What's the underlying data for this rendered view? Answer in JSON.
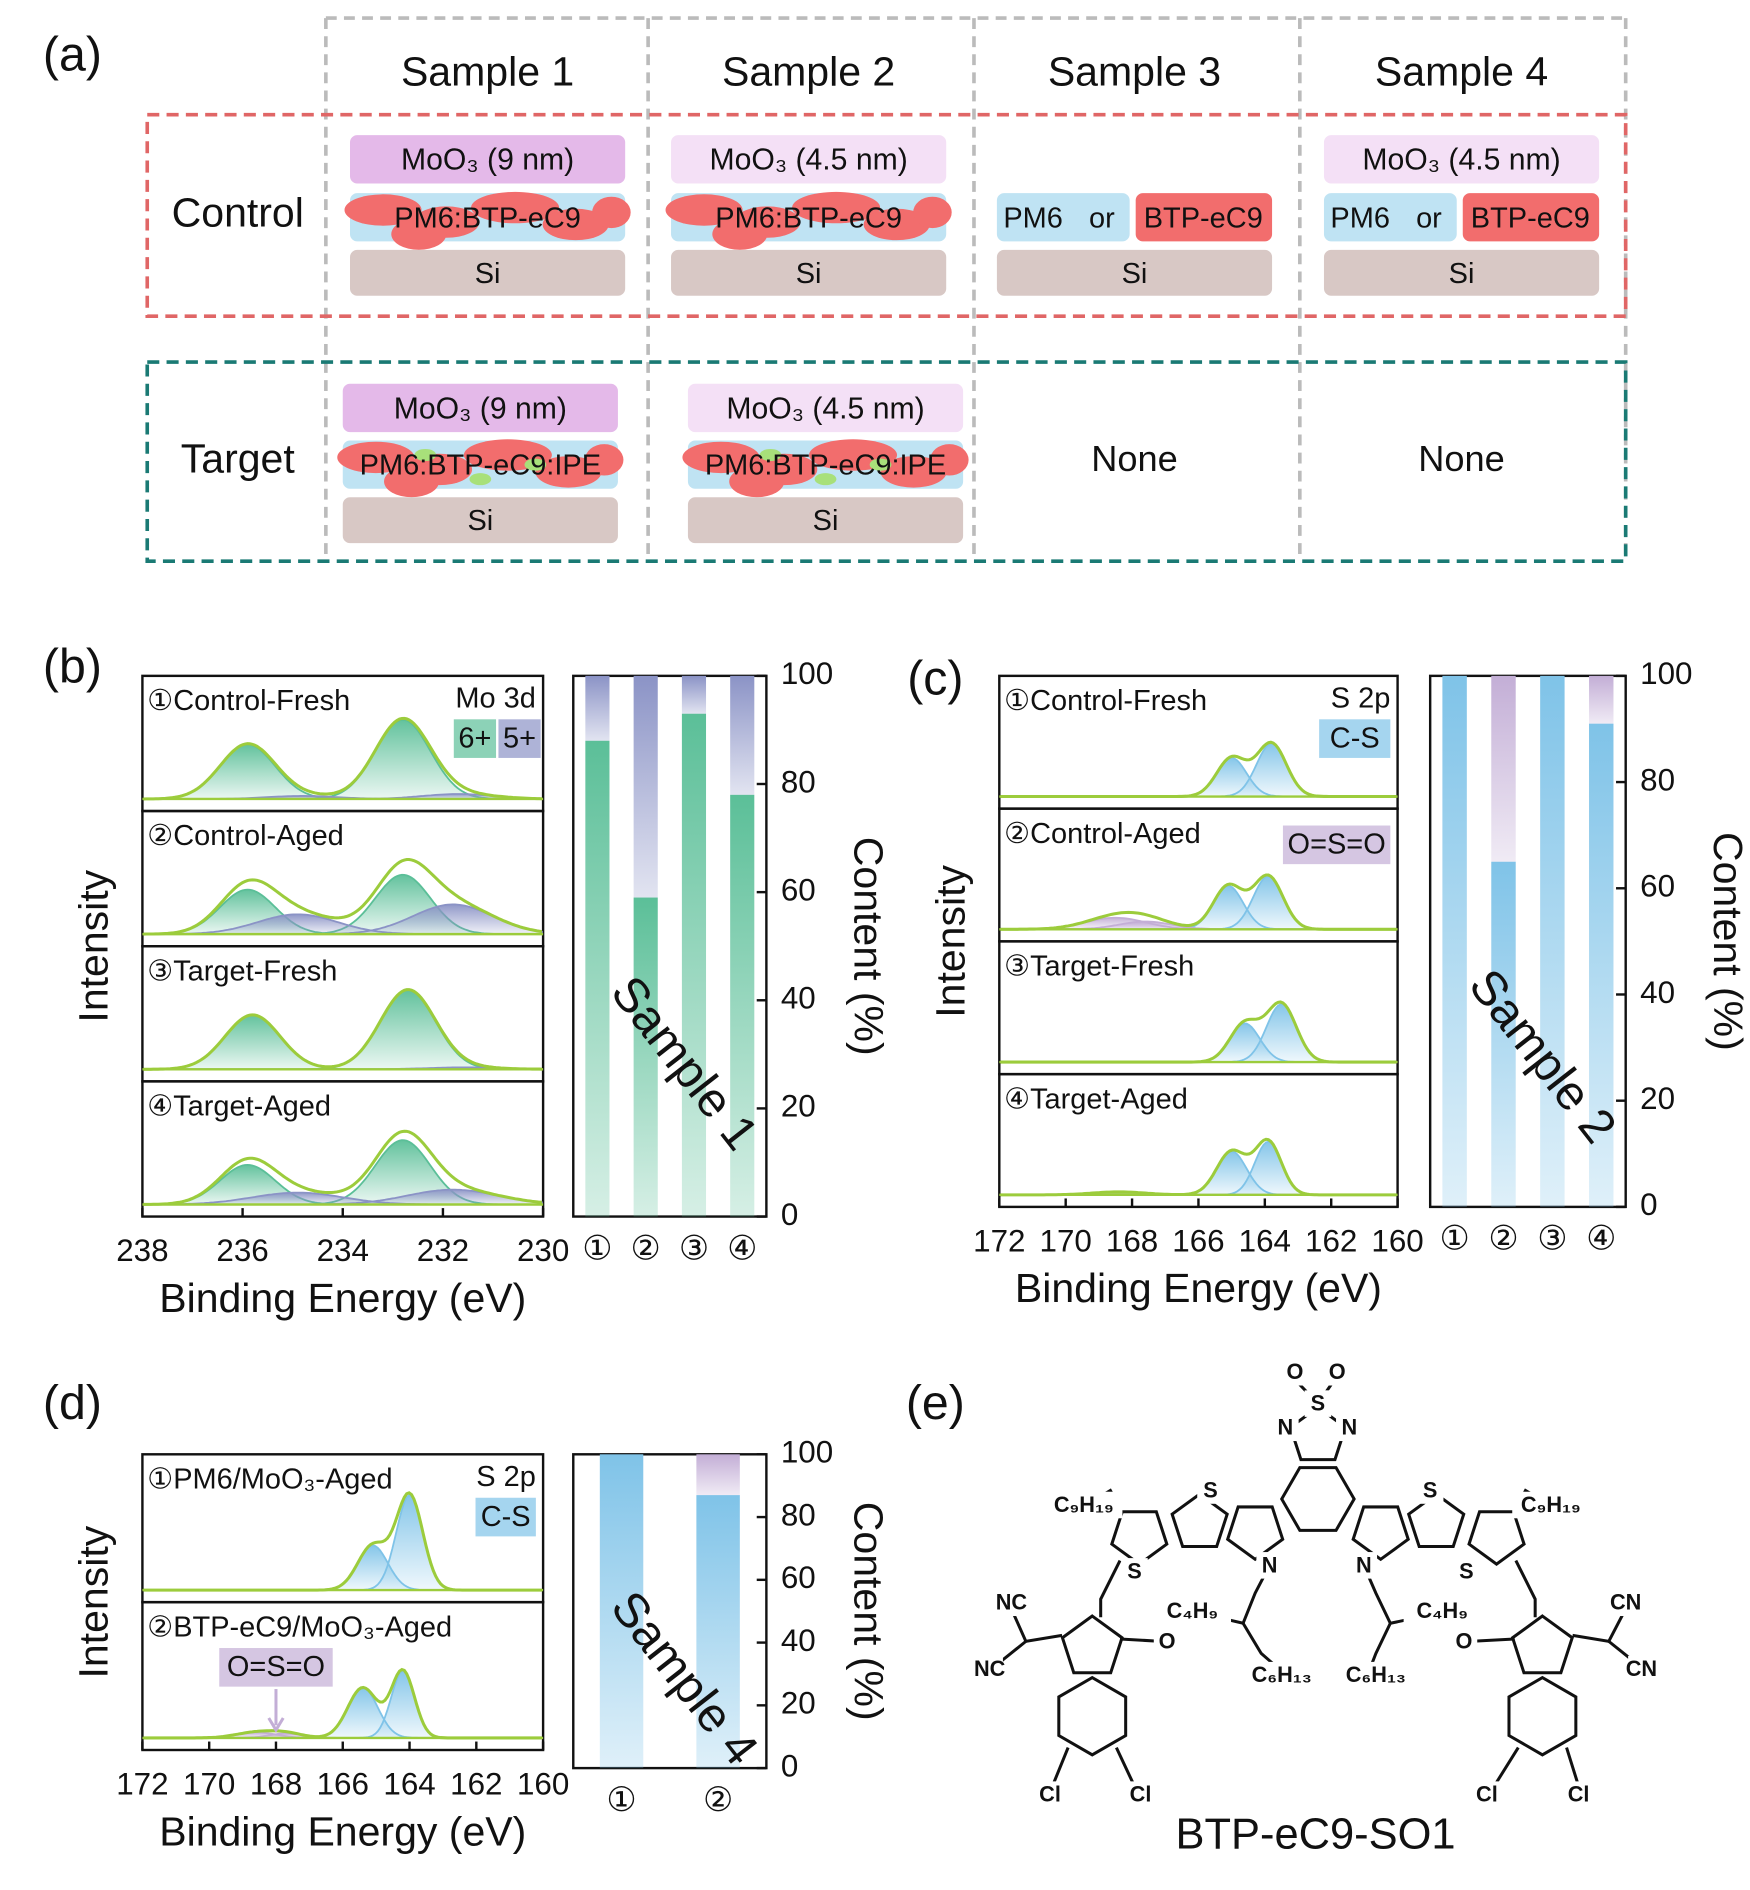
{
  "panel_a": {
    "label": "(a)",
    "columns": [
      "Sample 1",
      "Sample 2",
      "Sample 3",
      "Sample 4"
    ],
    "rows": [
      {
        "name": "Control",
        "box_color": "#e06666",
        "cells": [
          {
            "top": "MoO₃ (9 nm)",
            "top_color": "#e4b9e9",
            "middle": "PM6:BTP-eC9",
            "bottom": "Si"
          },
          {
            "top": "MoO₃ (4.5 nm)",
            "top_color": "#f4e0f6",
            "middle": "PM6:BTP-eC9",
            "bottom": "Si"
          },
          {
            "options": [
              "PM6",
              "or",
              "BTP-eC9"
            ],
            "bottom": "Si"
          },
          {
            "top": "MoO₃ (4.5 nm)",
            "top_color": "#f4e0f6",
            "options": [
              "PM6",
              "or",
              "BTP-eC9"
            ],
            "bottom": "Si"
          }
        ]
      },
      {
        "name": "Target",
        "box_color": "#1a7a74",
        "cells": [
          {
            "top": "MoO₃ (9 nm)",
            "top_color": "#e4b9e9",
            "middle": "PM6:BTP-eC9:IPE",
            "bottom": "Si"
          },
          {
            "top": "MoO₃ (4.5 nm)",
            "top_color": "#f4e0f6",
            "middle": "PM6:BTP-eC9:IPE",
            "bottom": "Si"
          },
          {
            "text": "None"
          },
          {
            "text": "None"
          }
        ]
      }
    ]
  },
  "chart_data": [
    {
      "type": "spectrum",
      "panel": "(b)",
      "annotation": "Mo 3d",
      "legend": "row",
      "xlabel": "Binding Energy (eV)",
      "ylabel": "Intensity",
      "xlim": [
        238,
        230
      ],
      "xticks": [
        238,
        236,
        234,
        232,
        230
      ],
      "series": [
        {
          "name": "6+",
          "color": "#5bbf98"
        },
        {
          "name": "5+",
          "color": "#8b93c6"
        }
      ],
      "spectra": [
        {
          "name": "①Control-Fresh",
          "peaks": [
            {
              "series": 0,
              "center": 235.9,
              "height": 0.55,
              "width": 0.55
            },
            {
              "series": 0,
              "center": 232.8,
              "height": 0.8,
              "width": 0.55
            },
            {
              "series": 1,
              "center": 234.8,
              "height": 0.03,
              "width": 0.7
            },
            {
              "series": 1,
              "center": 231.7,
              "height": 0.05,
              "width": 0.7
            }
          ]
        },
        {
          "name": "②Control-Aged",
          "peaks": [
            {
              "series": 0,
              "center": 235.9,
              "height": 0.45,
              "width": 0.55
            },
            {
              "series": 0,
              "center": 232.8,
              "height": 0.6,
              "width": 0.55
            },
            {
              "series": 1,
              "center": 234.9,
              "height": 0.2,
              "width": 0.8
            },
            {
              "series": 1,
              "center": 231.8,
              "height": 0.3,
              "width": 0.8
            }
          ]
        },
        {
          "name": "③Target-Fresh",
          "peaks": [
            {
              "series": 0,
              "center": 235.8,
              "height": 0.55,
              "width": 0.55
            },
            {
              "series": 0,
              "center": 232.7,
              "height": 0.8,
              "width": 0.55
            },
            {
              "series": 1,
              "center": 231.6,
              "height": 0.02,
              "width": 0.7
            }
          ]
        },
        {
          "name": "④Target-Aged",
          "peaks": [
            {
              "series": 0,
              "center": 235.9,
              "height": 0.4,
              "width": 0.55
            },
            {
              "series": 0,
              "center": 232.8,
              "height": 0.65,
              "width": 0.55
            },
            {
              "series": 1,
              "center": 234.9,
              "height": 0.12,
              "width": 0.9
            },
            {
              "series": 1,
              "center": 231.8,
              "height": 0.15,
              "width": 0.9
            }
          ]
        }
      ]
    },
    {
      "type": "stacked_bar",
      "annotation": "Sample 1",
      "ylabel": "Content (%)",
      "categories": [
        "①",
        "②",
        "③",
        "④"
      ],
      "ylim": [
        0,
        100
      ],
      "yticks": [
        0,
        20,
        40,
        60,
        80,
        100
      ],
      "series": [
        {
          "color": "#5bbf98",
          "values": [
            88,
            59,
            93,
            78
          ]
        },
        {
          "color": "#8b93c6",
          "values": [
            12,
            41,
            7,
            22
          ]
        }
      ]
    },
    {
      "type": "spectrum",
      "panel": "(c)",
      "annotation": "S 2p",
      "legend": "stack",
      "xlabel": "Binding Energy (eV)",
      "ylabel": "Intensity",
      "xlim": [
        172,
        160
      ],
      "xticks": [
        172,
        170,
        168,
        166,
        164,
        162,
        160
      ],
      "series": [
        {
          "name": "C-S",
          "color": "#7fc3e8"
        },
        {
          "name": "O=S=O",
          "color": "#c3aed6"
        }
      ],
      "spectra": [
        {
          "name": "①Control-Fresh",
          "peaks": [
            {
              "series": 0,
              "center": 165.0,
              "height": 0.4,
              "width": 0.45
            },
            {
              "series": 0,
              "center": 163.8,
              "height": 0.55,
              "width": 0.45
            }
          ]
        },
        {
          "name": "②Control-Aged",
          "peaks": [
            {
              "series": 0,
              "center": 165.1,
              "height": 0.45,
              "width": 0.45
            },
            {
              "series": 0,
              "center": 163.9,
              "height": 0.55,
              "width": 0.45
            },
            {
              "series": 1,
              "center": 168.5,
              "height": 0.12,
              "width": 0.9
            },
            {
              "series": 1,
              "center": 167.6,
              "height": 0.08,
              "width": 0.8
            }
          ]
        },
        {
          "name": "③Target-Fresh",
          "peaks": [
            {
              "series": 0,
              "center": 164.6,
              "height": 0.4,
              "width": 0.45
            },
            {
              "series": 0,
              "center": 163.5,
              "height": 0.6,
              "width": 0.45
            }
          ]
        },
        {
          "name": "④Target-Aged",
          "peaks": [
            {
              "series": 0,
              "center": 165.0,
              "height": 0.45,
              "width": 0.45
            },
            {
              "series": 0,
              "center": 163.9,
              "height": 0.55,
              "width": 0.4
            },
            {
              "series": 1,
              "center": 168.4,
              "height": 0.03,
              "width": 0.8
            }
          ]
        }
      ]
    },
    {
      "type": "stacked_bar",
      "annotation": "Sample 2",
      "ylabel": "Content (%)",
      "categories": [
        "①",
        "②",
        "③",
        "④"
      ],
      "ylim": [
        0,
        100
      ],
      "yticks": [
        0,
        20,
        40,
        60,
        80,
        100
      ],
      "series": [
        {
          "color": "#7fc3e8",
          "values": [
            100,
            65,
            100,
            91
          ]
        },
        {
          "color": "#c3aed6",
          "values": [
            0,
            35,
            0,
            9
          ]
        }
      ]
    },
    {
      "type": "spectrum",
      "panel": "(d)",
      "annotation": "S 2p",
      "legend": "first",
      "arrow_x": 168,
      "xlabel": "Binding Energy (eV)",
      "ylabel": "Intensity",
      "xlim": [
        172,
        160
      ],
      "xticks": [
        172,
        170,
        168,
        166,
        164,
        162,
        160
      ],
      "series": [
        {
          "name": "C-S",
          "color": "#7fc3e8"
        },
        {
          "name": "O=S=O",
          "color": "#c3aed6"
        }
      ],
      "spectra": [
        {
          "name": "①PM6/MoO₃-Aged",
          "peaks": [
            {
              "series": 0,
              "center": 165.1,
              "height": 0.4,
              "width": 0.45
            },
            {
              "series": 0,
              "center": 164.0,
              "height": 0.85,
              "width": 0.4
            }
          ]
        },
        {
          "name": "②BTP-eC9/MoO₃-Aged",
          "peaks": [
            {
              "series": 0,
              "center": 165.4,
              "height": 0.45,
              "width": 0.45
            },
            {
              "series": 0,
              "center": 164.2,
              "height": 0.6,
              "width": 0.35
            },
            {
              "series": 1,
              "center": 168.6,
              "height": 0.05,
              "width": 0.6
            },
            {
              "series": 1,
              "center": 167.7,
              "height": 0.04,
              "width": 0.5
            }
          ]
        }
      ]
    },
    {
      "type": "stacked_bar",
      "annotation": "Sample 4",
      "ylabel": "Content (%)",
      "categories": [
        "①",
        "②"
      ],
      "ylim": [
        0,
        100
      ],
      "yticks": [
        0,
        20,
        40,
        60,
        80,
        100
      ],
      "series": [
        {
          "color": "#7fc3e8",
          "values": [
            100,
            87
          ]
        },
        {
          "color": "#c3aed6",
          "values": [
            0,
            13
          ]
        }
      ]
    }
  ],
  "panel_e": {
    "label": "(e)",
    "name": "BTP-eC9-SO1",
    "atoms": [
      "O",
      "O",
      "S",
      "N",
      "N",
      "S",
      "S",
      "S",
      "S",
      "N",
      "N",
      "C₉H₁₉",
      "C₉H₁₉",
      "C₄H₉",
      "C₄H₉",
      "C₆H₁₃",
      "C₆H₁₃",
      "NC",
      "NC",
      "CN",
      "CN",
      "O",
      "O",
      "Cl",
      "Cl",
      "Cl",
      "Cl"
    ]
  }
}
